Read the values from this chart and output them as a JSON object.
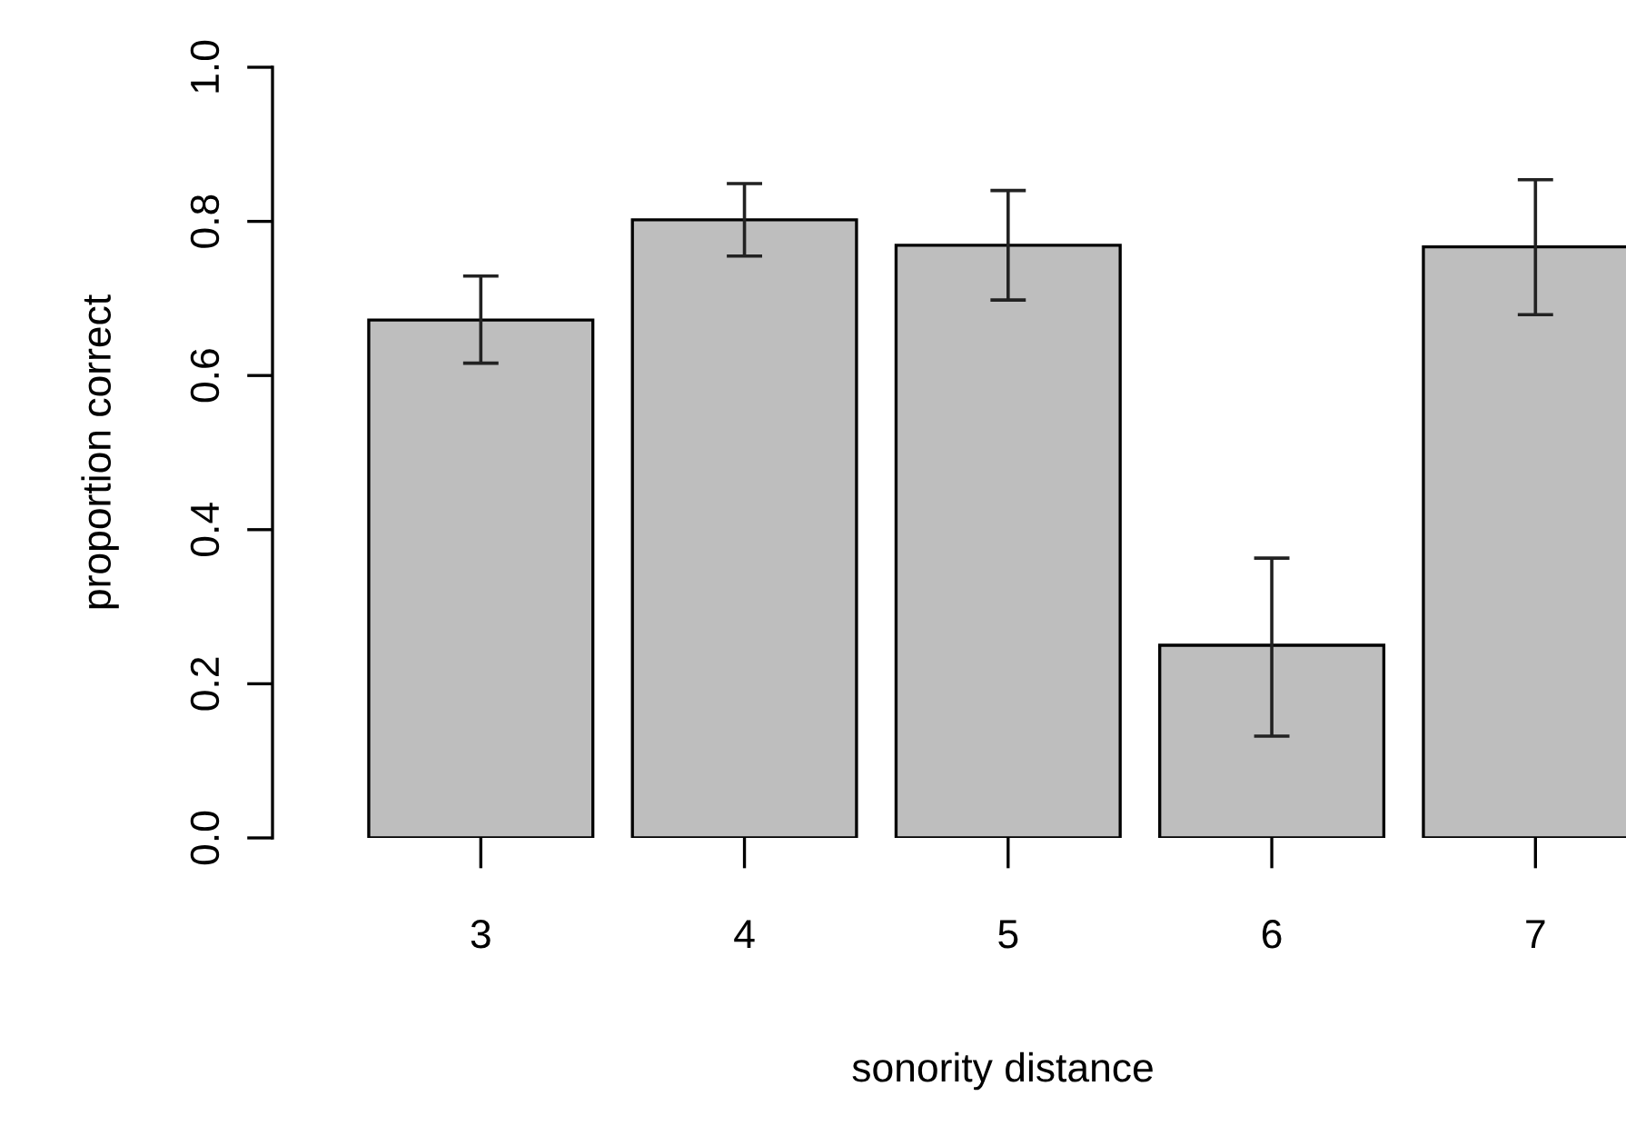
{
  "chart_data": {
    "type": "bar",
    "xlabel": "sonority distance",
    "ylabel": "proportion correct",
    "categories": [
      "3",
      "4",
      "5",
      "6",
      "7"
    ],
    "values": [
      0.672,
      0.802,
      0.769,
      0.25,
      0.767
    ],
    "errors": [
      [
        0.616,
        0.729
      ],
      [
        0.755,
        0.849
      ],
      [
        0.698,
        0.84
      ],
      [
        0.132,
        0.363
      ],
      [
        0.679,
        0.854
      ]
    ],
    "color": "#bebebe",
    "ylim": [
      0,
      1
    ],
    "yticks": [
      {
        "value": 0,
        "label": "0.0"
      },
      {
        "value": 0.2,
        "label": "0.2"
      },
      {
        "value": 0.4,
        "label": "0.4"
      },
      {
        "value": 0.6,
        "label": "0.6"
      },
      {
        "value": 0.8,
        "label": "0.8"
      },
      {
        "value": 1,
        "label": "1.0"
      }
    ],
    "grid": false
  }
}
